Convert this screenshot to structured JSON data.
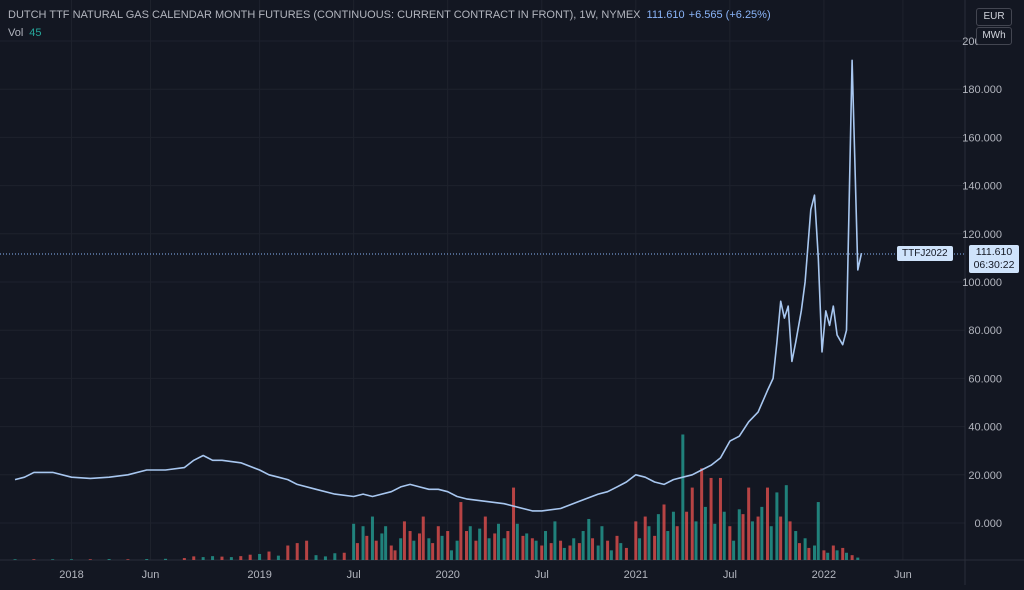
{
  "header": {
    "title": "DUTCH TTF NATURAL GAS CALENDAR MONTH FUTURES (CONTINUOUS: CURRENT CONTRACT IN FRONT), 1W, NYMEX",
    "last_price": "111.610",
    "change": "+6.565 (+6.25%)",
    "vol_label": "Vol",
    "vol_value": "45"
  },
  "units": {
    "currency": "EUR",
    "unit": "MWh"
  },
  "price_label": {
    "symbol": "TTFJ2022",
    "price": "111.610",
    "countdown": "06:30:22"
  },
  "colors": {
    "background": "#131722",
    "line": "#a8c7f0",
    "volume_up": "#26a69a",
    "volume_down": "#ef5350",
    "grid": "#1e222d"
  },
  "chart_data": {
    "type": "line",
    "ylim": [
      -14,
      200
    ],
    "y_ticks": [
      "0.000",
      "20.000",
      "40.000",
      "60.000",
      "80.000",
      "100.000",
      "120.000",
      "140.000",
      "160.000",
      "180.000",
      "200.000"
    ],
    "x_ticks": [
      {
        "label": "2018",
        "x": 2018.0
      },
      {
        "label": "Jun",
        "x": 2018.42
      },
      {
        "label": "2019",
        "x": 2019.0
      },
      {
        "label": "Jul",
        "x": 2019.5
      },
      {
        "label": "2020",
        "x": 2020.0
      },
      {
        "label": "Jul",
        "x": 2020.5
      },
      {
        "label": "2021",
        "x": 2021.0
      },
      {
        "label": "Jul",
        "x": 2021.5
      },
      {
        "label": "2022",
        "x": 2022.0
      },
      {
        "label": "Jun",
        "x": 2022.42
      }
    ],
    "xlim": [
      2017.62,
      2022.75
    ],
    "series": [
      {
        "points": [
          [
            2017.7,
            18
          ],
          [
            2017.75,
            19
          ],
          [
            2017.8,
            21
          ],
          [
            2017.9,
            21
          ],
          [
            2018.0,
            19
          ],
          [
            2018.1,
            18.5
          ],
          [
            2018.2,
            19
          ],
          [
            2018.3,
            20
          ],
          [
            2018.4,
            22
          ],
          [
            2018.5,
            22
          ],
          [
            2018.6,
            23
          ],
          [
            2018.65,
            26
          ],
          [
            2018.7,
            28
          ],
          [
            2018.75,
            26
          ],
          [
            2018.8,
            26
          ],
          [
            2018.9,
            25
          ],
          [
            2019.0,
            22
          ],
          [
            2019.05,
            20
          ],
          [
            2019.1,
            19
          ],
          [
            2019.15,
            18
          ],
          [
            2019.2,
            16
          ],
          [
            2019.3,
            14
          ],
          [
            2019.4,
            12
          ],
          [
            2019.5,
            11
          ],
          [
            2019.55,
            12
          ],
          [
            2019.6,
            11
          ],
          [
            2019.7,
            13
          ],
          [
            2019.75,
            15
          ],
          [
            2019.8,
            16
          ],
          [
            2019.85,
            15
          ],
          [
            2019.9,
            14
          ],
          [
            2019.95,
            14
          ],
          [
            2020.0,
            13
          ],
          [
            2020.05,
            11
          ],
          [
            2020.1,
            10
          ],
          [
            2020.2,
            9
          ],
          [
            2020.3,
            8
          ],
          [
            2020.4,
            6
          ],
          [
            2020.45,
            5
          ],
          [
            2020.5,
            5
          ],
          [
            2020.6,
            6
          ],
          [
            2020.7,
            9
          ],
          [
            2020.8,
            12
          ],
          [
            2020.85,
            13
          ],
          [
            2020.9,
            15
          ],
          [
            2020.95,
            17
          ],
          [
            2021.0,
            20
          ],
          [
            2021.05,
            19
          ],
          [
            2021.1,
            17
          ],
          [
            2021.15,
            16
          ],
          [
            2021.2,
            18
          ],
          [
            2021.25,
            19
          ],
          [
            2021.3,
            20
          ],
          [
            2021.35,
            22
          ],
          [
            2021.4,
            24
          ],
          [
            2021.45,
            27
          ],
          [
            2021.5,
            34
          ],
          [
            2021.55,
            36
          ],
          [
            2021.6,
            42
          ],
          [
            2021.65,
            46
          ],
          [
            2021.7,
            55
          ],
          [
            2021.73,
            60
          ],
          [
            2021.75,
            75
          ],
          [
            2021.77,
            92
          ],
          [
            2021.79,
            85
          ],
          [
            2021.81,
            90
          ],
          [
            2021.83,
            67
          ],
          [
            2021.85,
            75
          ],
          [
            2021.88,
            88
          ],
          [
            2021.9,
            100
          ],
          [
            2021.93,
            130
          ],
          [
            2021.95,
            136
          ],
          [
            2021.97,
            110
          ],
          [
            2021.99,
            71
          ],
          [
            2022.01,
            88
          ],
          [
            2022.03,
            82
          ],
          [
            2022.05,
            90
          ],
          [
            2022.07,
            78
          ],
          [
            2022.1,
            74
          ],
          [
            2022.12,
            80
          ],
          [
            2022.15,
            192
          ],
          [
            2022.18,
            105
          ],
          [
            2022.2,
            112
          ]
        ]
      }
    ],
    "volume": {
      "max": 58,
      "bars": [
        [
          2017.7,
          0.3,
          1
        ],
        [
          2017.8,
          0.3,
          0
        ],
        [
          2017.9,
          0.3,
          1
        ],
        [
          2018.0,
          0.3,
          1
        ],
        [
          2018.1,
          0.3,
          0
        ],
        [
          2018.2,
          0.4,
          1
        ],
        [
          2018.3,
          0.3,
          0
        ],
        [
          2018.4,
          0.4,
          1
        ],
        [
          2018.5,
          0.5,
          1
        ],
        [
          2018.6,
          0.8,
          0
        ],
        [
          2018.65,
          1.5,
          0
        ],
        [
          2018.7,
          1.2,
          1
        ],
        [
          2018.75,
          1.6,
          1
        ],
        [
          2018.8,
          1.4,
          0
        ],
        [
          2018.85,
          1.2,
          1
        ],
        [
          2018.9,
          1.6,
          0
        ],
        [
          2018.95,
          2.2,
          0
        ],
        [
          2019.0,
          2.5,
          1
        ],
        [
          2019.05,
          3.5,
          0
        ],
        [
          2019.1,
          1.8,
          1
        ],
        [
          2019.15,
          6,
          0
        ],
        [
          2019.2,
          7,
          0
        ],
        [
          2019.25,
          8,
          0
        ],
        [
          2019.3,
          2,
          1
        ],
        [
          2019.35,
          1.5,
          1
        ],
        [
          2019.4,
          2.8,
          1
        ],
        [
          2019.45,
          3,
          0
        ],
        [
          2019.5,
          15,
          1
        ],
        [
          2019.52,
          7,
          0
        ],
        [
          2019.55,
          14,
          1
        ],
        [
          2019.57,
          10,
          0
        ],
        [
          2019.6,
          18,
          1
        ],
        [
          2019.62,
          8,
          0
        ],
        [
          2019.65,
          11,
          1
        ],
        [
          2019.67,
          14,
          1
        ],
        [
          2019.7,
          6,
          0
        ],
        [
          2019.72,
          4,
          0
        ],
        [
          2019.75,
          9,
          1
        ],
        [
          2019.77,
          16,
          0
        ],
        [
          2019.8,
          12,
          0
        ],
        [
          2019.82,
          8,
          1
        ],
        [
          2019.85,
          11,
          0
        ],
        [
          2019.87,
          18,
          0
        ],
        [
          2019.9,
          9,
          1
        ],
        [
          2019.92,
          7,
          0
        ],
        [
          2019.95,
          14,
          0
        ],
        [
          2019.97,
          10,
          1
        ],
        [
          2020.0,
          12,
          0
        ],
        [
          2020.02,
          4,
          1
        ],
        [
          2020.05,
          8,
          1
        ],
        [
          2020.07,
          24,
          0
        ],
        [
          2020.1,
          12,
          0
        ],
        [
          2020.12,
          14,
          1
        ],
        [
          2020.15,
          8,
          0
        ],
        [
          2020.17,
          13,
          1
        ],
        [
          2020.2,
          18,
          0
        ],
        [
          2020.22,
          9,
          1
        ],
        [
          2020.25,
          11,
          0
        ],
        [
          2020.27,
          15,
          1
        ],
        [
          2020.3,
          9,
          1
        ],
        [
          2020.32,
          12,
          0
        ],
        [
          2020.35,
          30,
          0
        ],
        [
          2020.37,
          15,
          1
        ],
        [
          2020.4,
          10,
          0
        ],
        [
          2020.42,
          11,
          1
        ],
        [
          2020.45,
          9,
          0
        ],
        [
          2020.47,
          8,
          1
        ],
        [
          2020.5,
          6,
          0
        ],
        [
          2020.52,
          12,
          1
        ],
        [
          2020.55,
          7,
          0
        ],
        [
          2020.57,
          16,
          1
        ],
        [
          2020.6,
          8,
          0
        ],
        [
          2020.62,
          5,
          1
        ],
        [
          2020.65,
          6,
          0
        ],
        [
          2020.67,
          9,
          1
        ],
        [
          2020.7,
          7,
          0
        ],
        [
          2020.72,
          12,
          1
        ],
        [
          2020.75,
          17,
          1
        ],
        [
          2020.77,
          9,
          0
        ],
        [
          2020.8,
          6,
          1
        ],
        [
          2020.82,
          14,
          1
        ],
        [
          2020.85,
          8,
          0
        ],
        [
          2020.87,
          4,
          1
        ],
        [
          2020.9,
          10,
          0
        ],
        [
          2020.92,
          7,
          1
        ],
        [
          2020.95,
          5,
          0
        ],
        [
          2021.0,
          16,
          0
        ],
        [
          2021.02,
          9,
          1
        ],
        [
          2021.05,
          18,
          0
        ],
        [
          2021.07,
          14,
          1
        ],
        [
          2021.1,
          10,
          0
        ],
        [
          2021.12,
          19,
          1
        ],
        [
          2021.15,
          23,
          0
        ],
        [
          2021.17,
          12,
          1
        ],
        [
          2021.2,
          20,
          1
        ],
        [
          2021.22,
          14,
          0
        ],
        [
          2021.25,
          52,
          1
        ],
        [
          2021.27,
          20,
          0
        ],
        [
          2021.3,
          30,
          0
        ],
        [
          2021.32,
          16,
          1
        ],
        [
          2021.35,
          38,
          0
        ],
        [
          2021.37,
          22,
          1
        ],
        [
          2021.4,
          34,
          0
        ],
        [
          2021.42,
          15,
          1
        ],
        [
          2021.45,
          34,
          0
        ],
        [
          2021.47,
          20,
          1
        ],
        [
          2021.5,
          14,
          0
        ],
        [
          2021.52,
          8,
          1
        ],
        [
          2021.55,
          21,
          1
        ],
        [
          2021.57,
          19,
          0
        ],
        [
          2021.6,
          30,
          0
        ],
        [
          2021.62,
          16,
          1
        ],
        [
          2021.65,
          18,
          0
        ],
        [
          2021.67,
          22,
          1
        ],
        [
          2021.7,
          30,
          0
        ],
        [
          2021.72,
          14,
          1
        ],
        [
          2021.75,
          28,
          1
        ],
        [
          2021.77,
          18,
          0
        ],
        [
          2021.8,
          31,
          1
        ],
        [
          2021.82,
          16,
          0
        ],
        [
          2021.85,
          12,
          1
        ],
        [
          2021.87,
          7,
          0
        ],
        [
          2021.9,
          9,
          1
        ],
        [
          2021.92,
          5,
          0
        ],
        [
          2021.95,
          6,
          1
        ],
        [
          2021.97,
          24,
          1
        ],
        [
          2022.0,
          4,
          0
        ],
        [
          2022.02,
          3,
          1
        ],
        [
          2022.05,
          6,
          0
        ],
        [
          2022.07,
          4,
          1
        ],
        [
          2022.1,
          5,
          0
        ],
        [
          2022.12,
          3,
          1
        ],
        [
          2022.15,
          2,
          0
        ],
        [
          2022.18,
          1,
          1
        ]
      ]
    }
  }
}
